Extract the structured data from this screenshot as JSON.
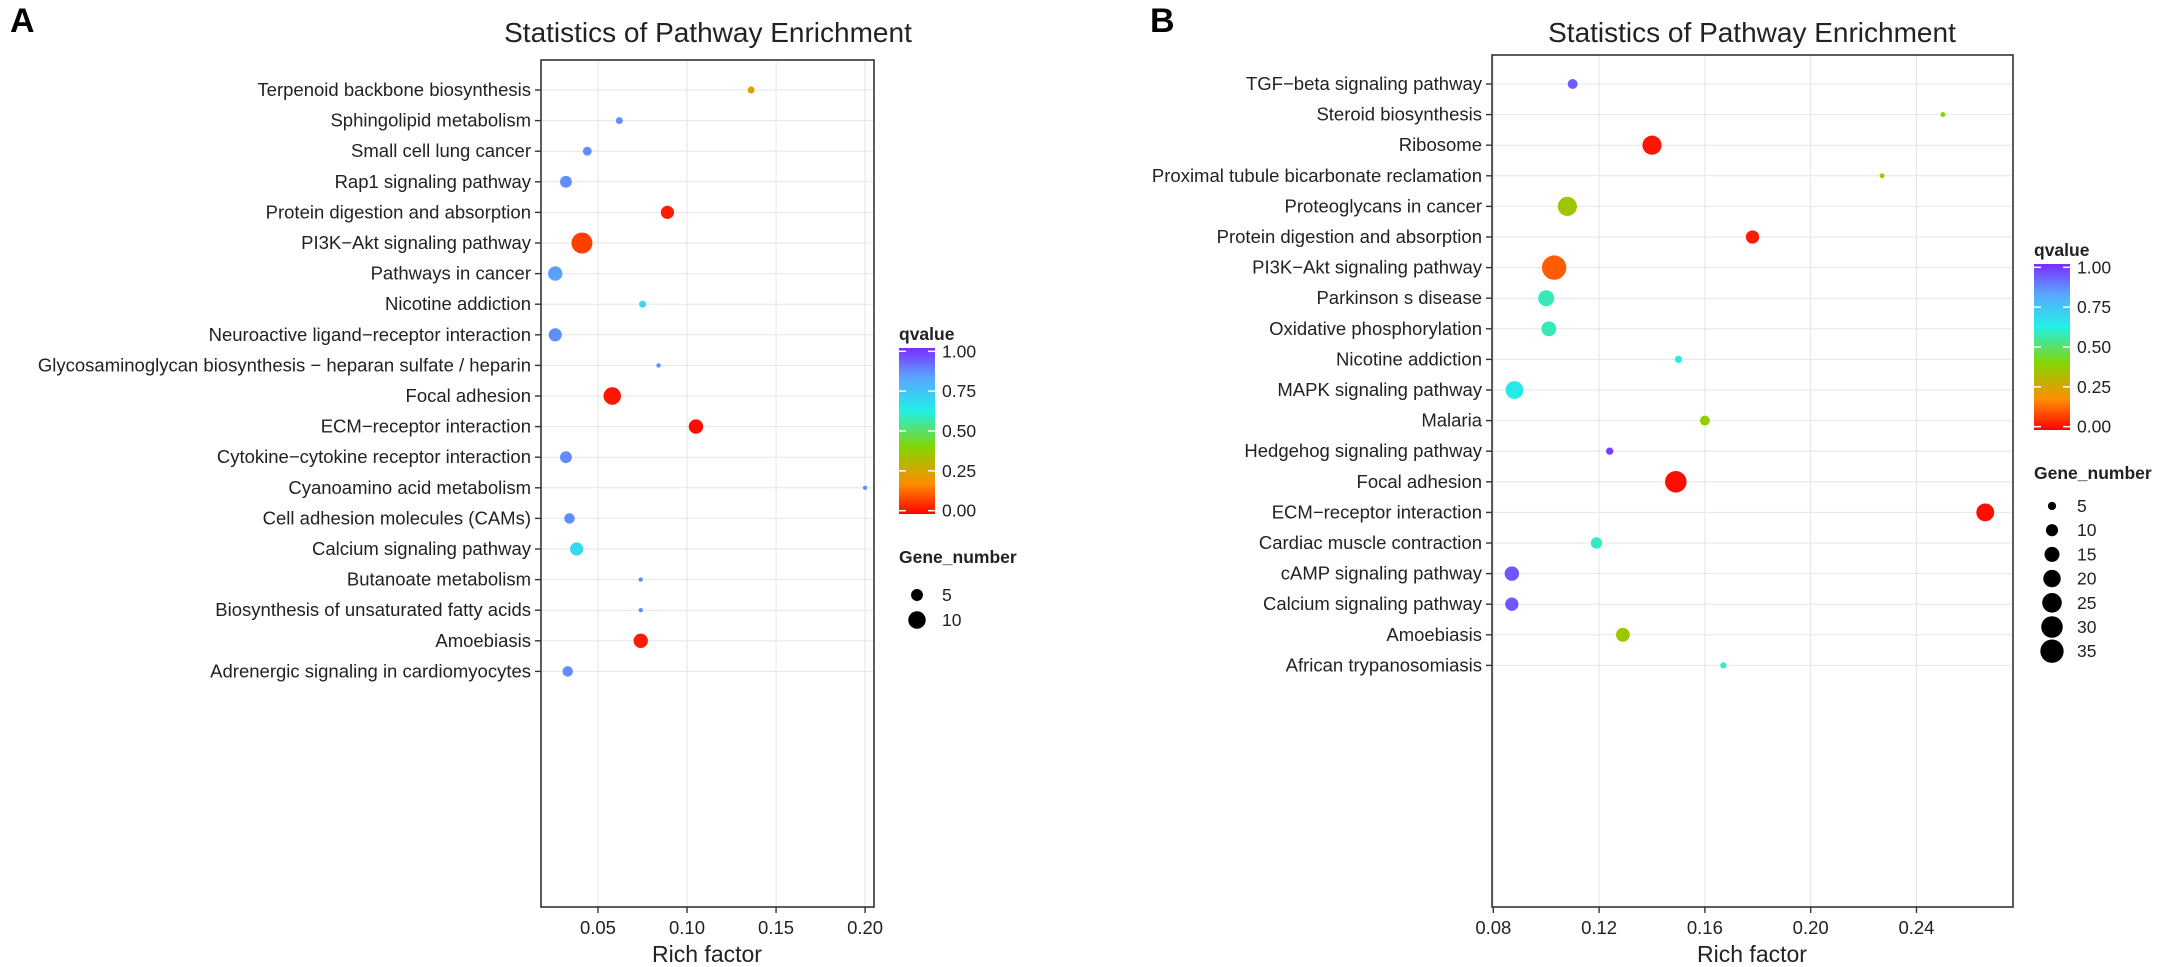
{
  "chart_data": [
    {
      "type": "scatter",
      "panel": "A",
      "title": "Statistics of Pathway Enrichment",
      "xlabel": "Rich factor",
      "ylabel": "",
      "xlim": [
        0.018,
        0.205
      ],
      "xticks": [
        0.05,
        0.1,
        0.15,
        0.2
      ],
      "xtick_labels": [
        "0.05",
        "0.10",
        "0.15",
        "0.20"
      ],
      "color_scale": {
        "title": "qvalue",
        "ticks": [
          "1.00",
          "0.75",
          "0.50",
          "0.25",
          "0.00"
        ],
        "tick_values": [
          1.0,
          0.75,
          0.5,
          0.25,
          0.0
        ],
        "colors": [
          "#ff0000",
          "#ff8c00",
          "#86d400",
          "#22f0e6",
          "#5aa6ff",
          "#7b2cff"
        ]
      },
      "size_legend": {
        "title": "Gene_number",
        "values": [
          5,
          10
        ],
        "labels": [
          "5",
          "10"
        ],
        "size_domain": [
          1,
          14
        ]
      },
      "categories": [
        "Terpenoid backbone biosynthesis",
        "Sphingolipid metabolism",
        "Small cell lung cancer",
        "Rap1 signaling pathway",
        "Protein digestion and absorption",
        "PI3K−Akt signaling pathway",
        "Pathways in cancer",
        "Nicotine addiction",
        "Neuroactive ligand−receptor interaction",
        "Glycosaminoglycan biosynthesis − heparan sulfate / heparin",
        "Focal adhesion",
        "ECM−receptor interaction",
        "Cytokine−cytokine receptor interaction",
        "Cyanoamino acid metabolism",
        "Cell adhesion molecules (CAMs)",
        "Calcium signaling pathway",
        "Butanoate metabolism",
        "Biosynthesis of unsaturated fatty acids",
        "Amoebiasis",
        "Adrenergic signaling in cardiomyocytes"
      ],
      "points": [
        {
          "x": 0.136,
          "q": 0.26,
          "genes": 2
        },
        {
          "x": 0.062,
          "q": 0.84,
          "genes": 2
        },
        {
          "x": 0.044,
          "q": 0.84,
          "genes": 3
        },
        {
          "x": 0.032,
          "q": 0.84,
          "genes": 5
        },
        {
          "x": 0.089,
          "q": 0.04,
          "genes": 6
        },
        {
          "x": 0.041,
          "q": 0.09,
          "genes": 14
        },
        {
          "x": 0.026,
          "q": 0.81,
          "genes": 7
        },
        {
          "x": 0.075,
          "q": 0.66,
          "genes": 2
        },
        {
          "x": 0.026,
          "q": 0.84,
          "genes": 6
        },
        {
          "x": 0.084,
          "q": 0.84,
          "genes": 1
        },
        {
          "x": 0.058,
          "q": 0.03,
          "genes": 10
        },
        {
          "x": 0.105,
          "q": 0.02,
          "genes": 7
        },
        {
          "x": 0.032,
          "q": 0.84,
          "genes": 5
        },
        {
          "x": 0.2,
          "q": 0.84,
          "genes": 1
        },
        {
          "x": 0.034,
          "q": 0.84,
          "genes": 4
        },
        {
          "x": 0.038,
          "q": 0.66,
          "genes": 6
        },
        {
          "x": 0.074,
          "q": 0.84,
          "genes": 1
        },
        {
          "x": 0.074,
          "q": 0.84,
          "genes": 1
        },
        {
          "x": 0.074,
          "q": 0.04,
          "genes": 7
        },
        {
          "x": 0.033,
          "q": 0.84,
          "genes": 4
        }
      ]
    },
    {
      "type": "scatter",
      "panel": "B",
      "title": "Statistics of Pathway Enrichment",
      "xlabel": "Rich factor",
      "ylabel": "",
      "xlim": [
        0.0795,
        0.2765
      ],
      "xticks": [
        0.08,
        0.12,
        0.16,
        0.2,
        0.24
      ],
      "xtick_labels": [
        "0.08",
        "0.12",
        "0.16",
        "0.20",
        "0.24"
      ],
      "color_scale": {
        "title": "qvalue",
        "ticks": [
          "1.00",
          "0.75",
          "0.50",
          "0.25",
          "0.00"
        ],
        "tick_values": [
          1.0,
          0.75,
          0.5,
          0.25,
          0.0
        ],
        "colors": [
          "#ff0000",
          "#ff8c00",
          "#86d400",
          "#22f0e6",
          "#5aa6ff",
          "#7b2cff"
        ]
      },
      "size_legend": {
        "title": "Gene_number",
        "values": [
          5,
          10,
          15,
          20,
          25,
          30,
          35
        ],
        "labels": [
          "5",
          "10",
          "15",
          "20",
          "25",
          "30",
          "35"
        ],
        "size_domain": [
          1,
          40
        ]
      },
      "categories": [
        "TGF−beta signaling pathway",
        "Steroid biosynthesis",
        "Ribosome",
        "Proximal tubule bicarbonate reclamation",
        "Proteoglycans in cancer",
        "Protein digestion and absorption",
        "PI3K−Akt signaling pathway",
        "Parkinson s disease",
        "Oxidative phosphorylation",
        "Nicotine addiction",
        "MAPK signaling pathway",
        "Malaria",
        "Hedgehog signaling pathway",
        "Focal adhesion",
        "ECM−receptor interaction",
        "Cardiac muscle contraction",
        "cAMP signaling pathway",
        "Calcium signaling pathway",
        "Amoebiasis",
        "African trypanosomiasis"
      ],
      "points": [
        {
          "x": 0.11,
          "q": 0.92,
          "genes": 7
        },
        {
          "x": 0.25,
          "q": 0.38,
          "genes": 2
        },
        {
          "x": 0.14,
          "q": 0.03,
          "genes": 24
        },
        {
          "x": 0.227,
          "q": 0.38,
          "genes": 2
        },
        {
          "x": 0.108,
          "q": 0.36,
          "genes": 24
        },
        {
          "x": 0.178,
          "q": 0.04,
          "genes": 12
        },
        {
          "x": 0.103,
          "q": 0.13,
          "genes": 38
        },
        {
          "x": 0.1,
          "q": 0.56,
          "genes": 17
        },
        {
          "x": 0.101,
          "q": 0.56,
          "genes": 15
        },
        {
          "x": 0.15,
          "q": 0.6,
          "genes": 4
        },
        {
          "x": 0.088,
          "q": 0.62,
          "genes": 21
        },
        {
          "x": 0.16,
          "q": 0.38,
          "genes": 7
        },
        {
          "x": 0.124,
          "q": 0.97,
          "genes": 4
        },
        {
          "x": 0.149,
          "q": 0.02,
          "genes": 30
        },
        {
          "x": 0.266,
          "q": 0.02,
          "genes": 21
        },
        {
          "x": 0.119,
          "q": 0.57,
          "genes": 9
        },
        {
          "x": 0.087,
          "q": 0.93,
          "genes": 14
        },
        {
          "x": 0.087,
          "q": 0.93,
          "genes": 12
        },
        {
          "x": 0.129,
          "q": 0.36,
          "genes": 13
        },
        {
          "x": 0.167,
          "q": 0.57,
          "genes": 3
        }
      ]
    }
  ]
}
